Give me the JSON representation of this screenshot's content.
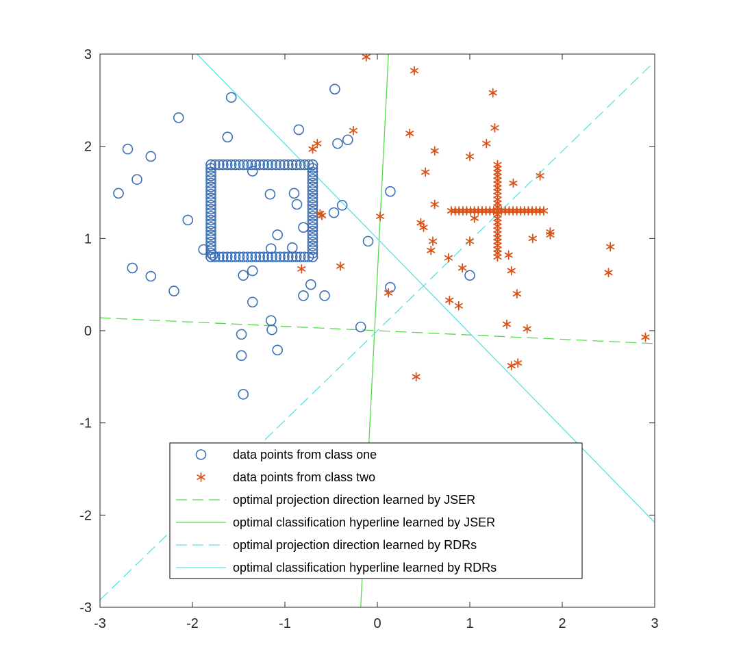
{
  "chart_data": {
    "type": "scatter",
    "xlim": [
      -3,
      3
    ],
    "ylim": [
      -3,
      3
    ],
    "x_ticks": [
      -3,
      -2,
      -1,
      0,
      1,
      2,
      3
    ],
    "y_ticks": [
      -3,
      -2,
      -1,
      0,
      1,
      2,
      3
    ],
    "x_tick_labels": [
      "-3",
      "-2",
      "-1",
      "0",
      "1",
      "2",
      "3"
    ],
    "y_tick_labels": [
      "-3",
      "-2",
      "-1",
      "0",
      "1",
      "2",
      "3"
    ],
    "grid": false,
    "legend_position": "bottom-center",
    "series": [
      {
        "name": "data points from class one",
        "kind": "points",
        "marker": "circle",
        "color": "#3b6fb5",
        "points": [
          [
            -2.8,
            1.49
          ],
          [
            -2.7,
            1.97
          ],
          [
            -2.6,
            1.64
          ],
          [
            -2.45,
            1.89
          ],
          [
            -2.15,
            2.31
          ],
          [
            -1.58,
            2.53
          ],
          [
            -1.62,
            2.1
          ],
          [
            -0.85,
            2.18
          ],
          [
            -0.46,
            2.62
          ],
          [
            -0.43,
            2.03
          ],
          [
            -0.32,
            2.07
          ],
          [
            -2.05,
            1.2
          ],
          [
            -2.65,
            0.68
          ],
          [
            -2.45,
            0.59
          ],
          [
            -2.2,
            0.43
          ],
          [
            -1.45,
            0.6
          ],
          [
            -1.35,
            0.65
          ],
          [
            -1.35,
            0.31
          ],
          [
            -1.15,
            0.11
          ],
          [
            -1.14,
            0.01
          ],
          [
            -1.08,
            -0.21
          ],
          [
            -1.47,
            -0.04
          ],
          [
            -1.47,
            -0.27
          ],
          [
            -1.45,
            -0.69
          ],
          [
            -0.8,
            0.38
          ],
          [
            -0.72,
            0.5
          ],
          [
            -0.57,
            0.38
          ],
          [
            -0.18,
            0.04
          ],
          [
            0.14,
            0.47
          ],
          [
            0.14,
            1.51
          ],
          [
            -0.1,
            0.97
          ],
          [
            -0.38,
            1.36
          ],
          [
            -0.47,
            1.28
          ],
          [
            1.0,
            0.6
          ],
          [
            -1.35,
            1.73
          ],
          [
            -1.16,
            1.48
          ],
          [
            -0.9,
            1.49
          ],
          [
            -0.87,
            1.37
          ],
          [
            -0.8,
            1.12
          ],
          [
            -1.08,
            1.04
          ],
          [
            -0.92,
            0.9
          ],
          [
            -1.15,
            0.89
          ],
          [
            -1.88,
            0.88
          ],
          [
            -1.78,
            0.82
          ]
        ],
        "square_outline": {
          "x_min": -1.8,
          "x_max": -0.7,
          "y_min": 0.8,
          "y_max": 1.8,
          "points_per_side": 26
        }
      },
      {
        "name": "data points from class two",
        "kind": "points",
        "marker": "asterisk",
        "color": "#d95319",
        "points": [
          [
            -0.12,
            2.97
          ],
          [
            0.4,
            2.82
          ],
          [
            1.25,
            2.58
          ],
          [
            1.27,
            2.2
          ],
          [
            0.35,
            2.14
          ],
          [
            -0.26,
            2.17
          ],
          [
            -0.65,
            2.03
          ],
          [
            -0.7,
            1.97
          ],
          [
            0.62,
            1.95
          ],
          [
            1.0,
            1.89
          ],
          [
            1.18,
            2.03
          ],
          [
            0.52,
            1.72
          ],
          [
            1.47,
            1.6
          ],
          [
            1.76,
            1.68
          ],
          [
            0.62,
            1.37
          ],
          [
            0.47,
            1.17
          ],
          [
            0.5,
            1.12
          ],
          [
            1.05,
            1.22
          ],
          [
            0.6,
            0.97
          ],
          [
            0.58,
            0.87
          ],
          [
            0.77,
            0.79
          ],
          [
            0.92,
            0.68
          ],
          [
            1.0,
            0.97
          ],
          [
            1.42,
            0.82
          ],
          [
            1.45,
            0.65
          ],
          [
            1.51,
            0.4
          ],
          [
            1.68,
            1.0
          ],
          [
            1.87,
            1.04
          ],
          [
            1.87,
            1.07
          ],
          [
            2.52,
            0.91
          ],
          [
            2.5,
            0.63
          ],
          [
            0.78,
            0.33
          ],
          [
            0.88,
            0.27
          ],
          [
            1.4,
            0.07
          ],
          [
            1.62,
            0.02
          ],
          [
            2.9,
            -0.07
          ],
          [
            1.45,
            -0.38
          ],
          [
            1.52,
            -0.35
          ],
          [
            0.42,
            -0.5
          ],
          [
            0.12,
            0.41
          ],
          [
            0.03,
            1.24
          ],
          [
            -0.4,
            0.7
          ],
          [
            -0.82,
            0.67
          ],
          [
            -0.62,
            1.27
          ],
          [
            -0.6,
            1.25
          ]
        ],
        "cross_shape": {
          "center": [
            1.3,
            1.3
          ],
          "half_length": 0.5,
          "points_per_arm": 12
        }
      },
      {
        "name": "optimal projection direction learned by JSER",
        "kind": "line",
        "style": "dashed",
        "color": "#55d94a",
        "points": [
          [
            -3,
            0.14
          ],
          [
            3,
            -0.14
          ]
        ]
      },
      {
        "name": "optimal classification hyperline learned by JSER",
        "kind": "line",
        "style": "solid",
        "color": "#55d94a",
        "points": [
          [
            -0.18,
            -3
          ],
          [
            0.12,
            3
          ]
        ]
      },
      {
        "name": "optimal projection direction learned by RDRs",
        "kind": "line",
        "style": "dashed",
        "color": "#55e3e3",
        "points": [
          [
            -3,
            -2.92
          ],
          [
            3,
            2.92
          ]
        ]
      },
      {
        "name": "optimal classification hyperline learned by RDRs",
        "kind": "line",
        "style": "solid",
        "color": "#55e3e3",
        "points": [
          [
            -1.95,
            3
          ],
          [
            3,
            -2.08
          ]
        ]
      }
    ]
  }
}
